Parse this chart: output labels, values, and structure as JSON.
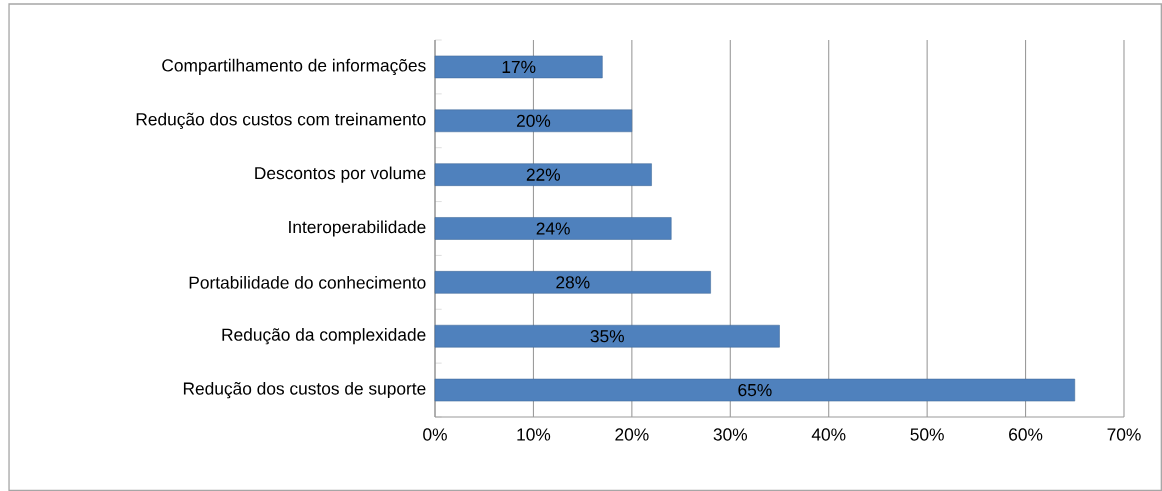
{
  "chart_data": {
    "type": "bar",
    "orientation": "horizontal",
    "categories": [
      "Compartilhamento de informações",
      "Redução dos custos com treinamento",
      "Descontos por volume",
      "Interoperabilidade",
      "Portabilidade do conhecimento",
      "Redução da complexidade",
      "Redução dos custos de suporte"
    ],
    "values": [
      17,
      20,
      22,
      24,
      28,
      35,
      65
    ],
    "value_labels": [
      "17%",
      "20%",
      "22%",
      "24%",
      "28%",
      "35%",
      "65%"
    ],
    "color": "#4f81bd",
    "xlim": [
      0,
      70
    ],
    "xticks": [
      {
        "value": 0,
        "label": "0%"
      },
      {
        "value": 10,
        "label": "10%"
      },
      {
        "value": 20,
        "label": "20%"
      },
      {
        "value": 30,
        "label": "30%"
      },
      {
        "value": 40,
        "label": "40%"
      },
      {
        "value": 50,
        "label": "50%"
      },
      {
        "value": 60,
        "label": "60%"
      },
      {
        "value": 70,
        "label": "70%"
      }
    ],
    "grid": "x"
  }
}
